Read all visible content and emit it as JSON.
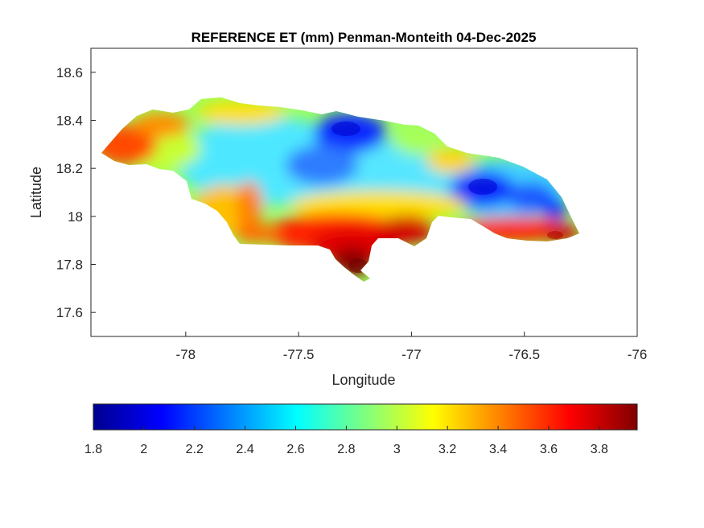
{
  "map": {
    "title": "REFERENCE ET (mm) Penman-Monteith 04-Dec-2025",
    "xlabel": "Longitude",
    "ylabel": "Latitude",
    "xlim": [
      -78.42,
      -76
    ],
    "ylim": [
      17.5,
      18.7
    ],
    "xticks": [
      -78,
      -77.5,
      -77,
      -76.5,
      -76
    ],
    "yticks": [
      17.6,
      17.8,
      18,
      18.2,
      18.4,
      18.6
    ],
    "colormap": "jet",
    "colorbar": {
      "position": "bottom",
      "range": [
        1.8,
        3.95
      ],
      "ticks": [
        1.8,
        2,
        2.2,
        2.4,
        2.6,
        2.8,
        3,
        3.2,
        3.4,
        3.6,
        3.8
      ]
    },
    "region": "Jamaica"
  }
}
